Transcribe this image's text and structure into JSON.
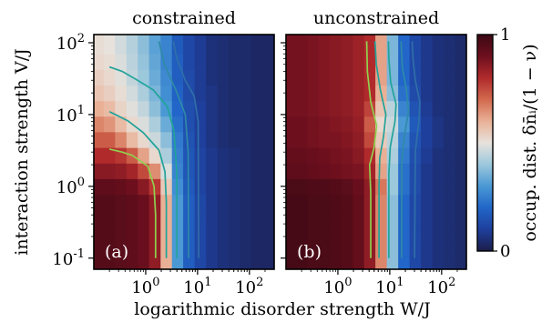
{
  "chart_data": [
    {
      "type": "heatmap",
      "panel_label": "(a)",
      "title": "constrained",
      "xlabel": "logarithmic disorder strength  W/J",
      "ylabel": "interaction strength  V/J",
      "xscale": "log",
      "yscale": "log",
      "xlim": [
        0.1,
        300
      ],
      "ylim": [
        0.07,
        130
      ],
      "xticks": [
        "10^0",
        "10^1",
        "10^2"
      ],
      "yticks": [
        "10^-1",
        "10^0",
        "10^1",
        "10^2"
      ],
      "x_centers": [
        0.12,
        0.2,
        0.33,
        0.55,
        0.9,
        1.5,
        2.5,
        4.1,
        6.8,
        11.3,
        18.7,
        31,
        51,
        85,
        140,
        230
      ],
      "y_centers": [
        0.082,
        0.135,
        0.22,
        0.37,
        0.6,
        1.0,
        1.65,
        2.7,
        4.5,
        7.4,
        12.2,
        20,
        33,
        55,
        90
      ],
      "values": [
        [
          0.95,
          0.95,
          0.94,
          0.93,
          0.91,
          0.85,
          0.6,
          0.3,
          0.18,
          0.12,
          0.08,
          0.06,
          0.05,
          0.04,
          0.03,
          0.03
        ],
        [
          0.95,
          0.95,
          0.94,
          0.93,
          0.91,
          0.85,
          0.6,
          0.3,
          0.18,
          0.12,
          0.08,
          0.06,
          0.05,
          0.04,
          0.03,
          0.03
        ],
        [
          0.95,
          0.95,
          0.94,
          0.93,
          0.91,
          0.85,
          0.6,
          0.3,
          0.18,
          0.12,
          0.08,
          0.06,
          0.05,
          0.04,
          0.03,
          0.03
        ],
        [
          0.95,
          0.95,
          0.94,
          0.93,
          0.91,
          0.85,
          0.6,
          0.3,
          0.18,
          0.12,
          0.08,
          0.06,
          0.05,
          0.04,
          0.03,
          0.03
        ],
        [
          0.95,
          0.95,
          0.94,
          0.93,
          0.91,
          0.85,
          0.6,
          0.3,
          0.18,
          0.12,
          0.08,
          0.06,
          0.05,
          0.04,
          0.03,
          0.03
        ],
        [
          0.93,
          0.93,
          0.92,
          0.9,
          0.86,
          0.78,
          0.55,
          0.28,
          0.17,
          0.11,
          0.08,
          0.06,
          0.05,
          0.04,
          0.03,
          0.03
        ],
        [
          0.86,
          0.86,
          0.85,
          0.82,
          0.75,
          0.65,
          0.48,
          0.26,
          0.16,
          0.11,
          0.08,
          0.06,
          0.05,
          0.04,
          0.03,
          0.03
        ],
        [
          0.8,
          0.8,
          0.78,
          0.72,
          0.62,
          0.52,
          0.42,
          0.25,
          0.16,
          0.11,
          0.08,
          0.06,
          0.05,
          0.04,
          0.03,
          0.03
        ],
        [
          0.72,
          0.72,
          0.66,
          0.58,
          0.52,
          0.46,
          0.38,
          0.24,
          0.15,
          0.1,
          0.07,
          0.05,
          0.04,
          0.04,
          0.03,
          0.03
        ],
        [
          0.66,
          0.64,
          0.58,
          0.52,
          0.48,
          0.42,
          0.34,
          0.22,
          0.14,
          0.1,
          0.07,
          0.05,
          0.04,
          0.04,
          0.03,
          0.03
        ],
        [
          0.6,
          0.58,
          0.53,
          0.49,
          0.45,
          0.38,
          0.3,
          0.2,
          0.14,
          0.1,
          0.07,
          0.05,
          0.04,
          0.04,
          0.03,
          0.03
        ],
        [
          0.56,
          0.54,
          0.51,
          0.47,
          0.42,
          0.36,
          0.28,
          0.19,
          0.13,
          0.09,
          0.07,
          0.05,
          0.04,
          0.04,
          0.03,
          0.03
        ],
        [
          0.54,
          0.52,
          0.49,
          0.45,
          0.4,
          0.34,
          0.27,
          0.18,
          0.13,
          0.09,
          0.06,
          0.05,
          0.04,
          0.04,
          0.03,
          0.03
        ],
        [
          0.52,
          0.51,
          0.48,
          0.44,
          0.39,
          0.33,
          0.26,
          0.18,
          0.12,
          0.09,
          0.06,
          0.05,
          0.04,
          0.04,
          0.03,
          0.03
        ],
        [
          0.51,
          0.5,
          0.47,
          0.43,
          0.38,
          0.32,
          0.26,
          0.17,
          0.12,
          0.09,
          0.06,
          0.05,
          0.04,
          0.04,
          0.03,
          0.03
        ]
      ],
      "contours": [
        {
          "color": "#8fd14f",
          "points": [
            [
              1.55,
              0.1
            ],
            [
              1.55,
              0.4
            ],
            [
              1.45,
              1.0
            ],
            [
              1.1,
              1.9
            ],
            [
              0.55,
              2.7
            ],
            [
              0.35,
              3.0
            ],
            [
              0.2,
              3.3
            ]
          ]
        },
        {
          "color": "#21a39a",
          "points": [
            [
              2.5,
              0.1
            ],
            [
              2.5,
              0.6
            ],
            [
              2.35,
              1.6
            ],
            [
              1.8,
              3.2
            ],
            [
              0.9,
              5.6
            ],
            [
              0.45,
              8.2
            ],
            [
              0.2,
              11
            ]
          ]
        },
        {
          "color": "#21a39a",
          "points": [
            [
              4.0,
              0.1
            ],
            [
              4.0,
              1.5
            ],
            [
              3.5,
              6.0
            ],
            [
              2.6,
              13
            ],
            [
              1.4,
              22
            ],
            [
              0.7,
              30
            ],
            [
              0.35,
              40
            ],
            [
              0.2,
              46
            ]
          ]
        },
        {
          "color": "#2e8aa8",
          "points": [
            [
              6.7,
              0.1
            ],
            [
              6.6,
              3.0
            ],
            [
              5.8,
              10
            ],
            [
              3.8,
              22
            ],
            [
              2.3,
              50
            ],
            [
              1.8,
              105
            ]
          ]
        },
        {
          "color": "#2f6fa8",
          "points": [
            [
              10.5,
              0.1
            ],
            [
              10.3,
              8
            ],
            [
              8.6,
              18
            ],
            [
              5.8,
              30
            ],
            [
              4.0,
              60
            ],
            [
              3.4,
              105
            ]
          ]
        }
      ]
    },
    {
      "type": "heatmap",
      "panel_label": "(b)",
      "title": "unconstrained",
      "xscale": "log",
      "yscale": "log",
      "xlim": [
        0.1,
        300
      ],
      "ylim": [
        0.07,
        130
      ],
      "xticks": [
        "10^0",
        "10^1",
        "10^2"
      ],
      "x_centers": [
        0.12,
        0.2,
        0.33,
        0.55,
        0.9,
        1.5,
        2.5,
        4.1,
        6.8,
        11.3,
        18.7,
        31,
        51,
        85,
        140,
        230
      ],
      "y_centers": [
        0.082,
        0.135,
        0.22,
        0.37,
        0.6,
        1.0,
        1.65,
        2.7,
        4.5,
        7.4,
        12.2,
        20,
        33,
        55,
        90
      ],
      "values": [
        [
          0.98,
          0.98,
          0.97,
          0.97,
          0.96,
          0.95,
          0.92,
          0.85,
          0.66,
          0.38,
          0.2,
          0.12,
          0.08,
          0.06,
          0.05,
          0.04
        ],
        [
          0.98,
          0.98,
          0.97,
          0.97,
          0.96,
          0.95,
          0.92,
          0.85,
          0.66,
          0.38,
          0.2,
          0.12,
          0.08,
          0.06,
          0.05,
          0.04
        ],
        [
          0.98,
          0.98,
          0.97,
          0.97,
          0.96,
          0.95,
          0.92,
          0.85,
          0.66,
          0.38,
          0.2,
          0.12,
          0.08,
          0.06,
          0.05,
          0.04
        ],
        [
          0.98,
          0.98,
          0.97,
          0.97,
          0.96,
          0.95,
          0.92,
          0.85,
          0.66,
          0.38,
          0.2,
          0.12,
          0.08,
          0.06,
          0.05,
          0.04
        ],
        [
          0.98,
          0.98,
          0.97,
          0.97,
          0.96,
          0.95,
          0.92,
          0.85,
          0.66,
          0.38,
          0.2,
          0.12,
          0.08,
          0.06,
          0.05,
          0.04
        ],
        [
          0.97,
          0.97,
          0.96,
          0.96,
          0.95,
          0.94,
          0.91,
          0.85,
          0.68,
          0.4,
          0.22,
          0.13,
          0.08,
          0.06,
          0.05,
          0.04
        ],
        [
          0.93,
          0.93,
          0.92,
          0.91,
          0.9,
          0.89,
          0.88,
          0.82,
          0.62,
          0.4,
          0.22,
          0.13,
          0.08,
          0.06,
          0.05,
          0.04
        ],
        [
          0.92,
          0.92,
          0.91,
          0.9,
          0.89,
          0.88,
          0.86,
          0.8,
          0.6,
          0.42,
          0.24,
          0.14,
          0.09,
          0.06,
          0.05,
          0.04
        ],
        [
          0.9,
          0.9,
          0.89,
          0.88,
          0.88,
          0.87,
          0.85,
          0.75,
          0.55,
          0.44,
          0.26,
          0.15,
          0.1,
          0.07,
          0.05,
          0.04
        ],
        [
          0.9,
          0.9,
          0.89,
          0.88,
          0.87,
          0.86,
          0.84,
          0.72,
          0.52,
          0.46,
          0.3,
          0.17,
          0.1,
          0.07,
          0.05,
          0.04
        ],
        [
          0.89,
          0.89,
          0.88,
          0.87,
          0.86,
          0.85,
          0.83,
          0.76,
          0.56,
          0.44,
          0.26,
          0.15,
          0.09,
          0.06,
          0.05,
          0.04
        ],
        [
          0.89,
          0.89,
          0.88,
          0.87,
          0.86,
          0.85,
          0.83,
          0.8,
          0.6,
          0.38,
          0.22,
          0.13,
          0.08,
          0.06,
          0.05,
          0.04
        ],
        [
          0.89,
          0.89,
          0.88,
          0.87,
          0.86,
          0.85,
          0.83,
          0.8,
          0.62,
          0.36,
          0.2,
          0.12,
          0.08,
          0.06,
          0.05,
          0.04
        ],
        [
          0.89,
          0.89,
          0.88,
          0.87,
          0.86,
          0.85,
          0.83,
          0.8,
          0.62,
          0.36,
          0.2,
          0.12,
          0.08,
          0.06,
          0.05,
          0.04
        ],
        [
          0.89,
          0.89,
          0.88,
          0.87,
          0.86,
          0.85,
          0.83,
          0.8,
          0.62,
          0.36,
          0.2,
          0.12,
          0.08,
          0.06,
          0.05,
          0.04
        ]
      ],
      "contours": [
        {
          "color": "#8fd14f",
          "points": [
            [
              4.3,
              0.1
            ],
            [
              4.3,
              0.8
            ],
            [
              4.1,
              2.0
            ],
            [
              5.0,
              3.5
            ],
            [
              5.6,
              7
            ],
            [
              4.3,
              15
            ],
            [
              3.7,
              40
            ],
            [
              3.6,
              105
            ]
          ]
        },
        {
          "color": "#21a39a",
          "points": [
            [
              6.2,
              0.1
            ],
            [
              6.2,
              1.0
            ],
            [
              6.4,
              2.5
            ],
            [
              7.6,
              5.0
            ],
            [
              8.4,
              10
            ],
            [
              6.6,
              22
            ],
            [
              5.5,
              50
            ],
            [
              5.2,
              105
            ]
          ]
        },
        {
          "color": "#21a39a",
          "points": [
            [
              9.6,
              0.1
            ],
            [
              9.6,
              1.5
            ],
            [
              10.2,
              3.5
            ],
            [
              12.6,
              8
            ],
            [
              13.2,
              14
            ],
            [
              10.4,
              28
            ],
            [
              9.6,
              60
            ],
            [
              9.4,
              105
            ]
          ]
        },
        {
          "color": "#2e8aa8",
          "points": [
            [
              17,
              0.1
            ],
            [
              17,
              2.0
            ],
            [
              19,
              5.0
            ],
            [
              23,
              11
            ],
            [
              21,
              22
            ],
            [
              17.5,
              45
            ],
            [
              16.5,
              105
            ]
          ]
        },
        {
          "color": "#2f6fa8",
          "points": [
            [
              30,
              0.1
            ],
            [
              31,
              3.0
            ],
            [
              37,
              9
            ],
            [
              38,
              15
            ],
            [
              31,
              30
            ],
            [
              28,
              60
            ],
            [
              27,
              105
            ]
          ]
        }
      ]
    }
  ],
  "colorbar": {
    "label": "occup. dist.  δn̄ᵢ/(1 − ν)",
    "min_label": "0",
    "max_label": "1",
    "range": [
      0,
      1
    ],
    "colormap": [
      "#1b1d4a",
      "#1f3f9c",
      "#2166c8",
      "#4a98d4",
      "#9cc8dc",
      "#e8e2dc",
      "#e9b096",
      "#d2694e",
      "#b02a2c",
      "#6e0f1e",
      "#3c0914"
    ]
  }
}
